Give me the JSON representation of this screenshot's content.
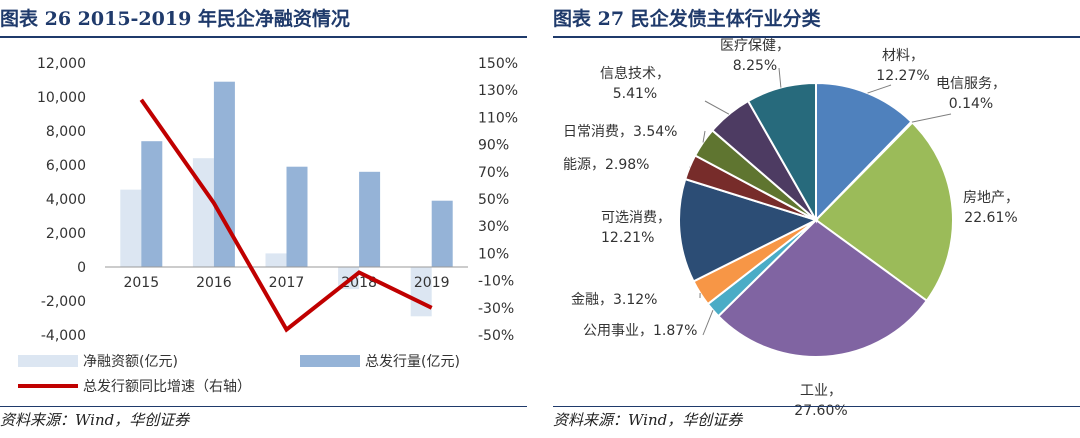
{
  "charts": [
    {
      "title": "图表 26   2015-2019 年民企净融资情况",
      "source": "资料来源：Wind，华创证券"
    },
    {
      "title": "图表 27   民企发债主体行业分类",
      "source": "资料来源：Wind，华创证券"
    }
  ],
  "chart_data": [
    {
      "type": "bar",
      "categories": [
        "2015",
        "2016",
        "2017",
        "2018",
        "2019"
      ],
      "series": [
        {
          "name": "净融资额(亿元)",
          "kind": "bar",
          "axis": "left",
          "color": "#dce6f2",
          "values": [
            4550,
            6400,
            800,
            -1300,
            -2900
          ]
        },
        {
          "name": "总发行量(亿元)",
          "kind": "bar",
          "axis": "left",
          "color": "#95b3d7",
          "values": [
            7400,
            10900,
            5900,
            5600,
            3900
          ]
        },
        {
          "name": "总发行额同比增速（右轴）",
          "kind": "line",
          "axis": "right",
          "color": "#c00000",
          "values": [
            123,
            47,
            -46,
            -4,
            -30
          ]
        }
      ],
      "y_left": {
        "ylim": [
          -4000,
          12000
        ],
        "ticks": [
          "12,000",
          "10,000",
          "8,000",
          "6,000",
          "4,000",
          "2,000",
          "0",
          "-2,000",
          "-4,000"
        ]
      },
      "y_right": {
        "ylim": [
          -50,
          150
        ],
        "ticks": [
          "150%",
          "130%",
          "110%",
          "90%",
          "70%",
          "50%",
          "30%",
          "10%",
          "-10%",
          "-30%",
          "-50%"
        ]
      },
      "legend": "bottom"
    },
    {
      "type": "pie",
      "slices": [
        {
          "label": "材料",
          "value": 12.27,
          "display": "12.27%",
          "color": "#4f81bd"
        },
        {
          "label": "电信服务",
          "value": 0.14,
          "display": "0.14%",
          "color": "#c0504d"
        },
        {
          "label": "房地产",
          "value": 22.61,
          "display": "22.61%",
          "color": "#9bbb59"
        },
        {
          "label": "工业",
          "value": 27.6,
          "display": "27.60%",
          "color": "#8064a2"
        },
        {
          "label": "公用事业",
          "value": 1.87,
          "display": "1.87%",
          "color": "#4bacc6"
        },
        {
          "label": "金融",
          "value": 3.12,
          "display": "3.12%",
          "color": "#f79646"
        },
        {
          "label": "可选消费",
          "value": 12.21,
          "display": "12.21%",
          "color": "#2c4d75"
        },
        {
          "label": "能源",
          "value": 2.98,
          "display": "2.98%",
          "color": "#772c2a"
        },
        {
          "label": "日常消费",
          "value": 3.54,
          "display": "3.54%",
          "color": "#5f7530"
        },
        {
          "label": "信息技术",
          "value": 5.41,
          "display": "5.41%",
          "color": "#4d3b62"
        },
        {
          "label": "医疗保健",
          "value": 8.25,
          "display": "8.25%",
          "color": "#276a7c"
        }
      ]
    }
  ]
}
